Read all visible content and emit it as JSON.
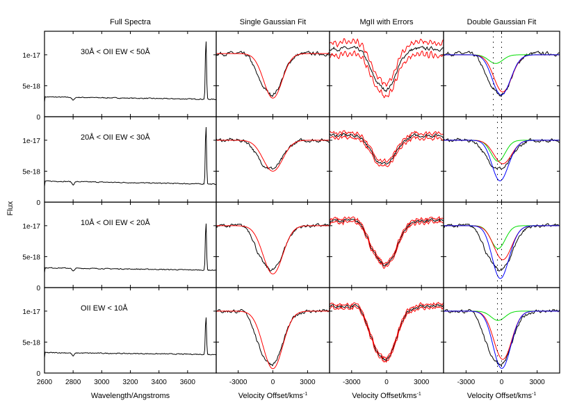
{
  "chart_data": {
    "type": "line",
    "ylabel": "Flux",
    "column_titles": [
      "Full Spectra",
      "Single Gaussian Fit",
      "MgII with Errors",
      "Double Gaussian Fit"
    ],
    "xlabels": [
      "Wavelength/Angstroms",
      "Velocity Offset/kms",
      "Velocity Offset/kms",
      "Velocity Offset/kms"
    ],
    "xlabel_superscript": "-1",
    "full_spectra_xlim": [
      2600,
      3800
    ],
    "full_spectra_xticks": [
      "2600",
      "2800",
      "3000",
      "3200",
      "3400",
      "3600"
    ],
    "velocity_xlim": [
      -4900,
      4900
    ],
    "velocity_xticks": [
      "-3000",
      "0",
      "3000"
    ],
    "ylim": [
      0,
      1.38e-17
    ],
    "yticks": [
      "0",
      "5e-18",
      "1e-17"
    ],
    "series_colors": {
      "data": "#000000",
      "fit": "#ff0000",
      "component_2": "#00dd00",
      "total_fit": "#0000ff",
      "errors": "#ff0000"
    },
    "rows": [
      {
        "label": "30Å < OII EW < 50Å",
        "continuum_start": 3.2e-18,
        "continuum_end": 2.8e-18,
        "oii_peak": 1.3e-17,
        "single_fit": {
          "continuum": 1.02e-17,
          "minimum": 3e-18,
          "center": 0,
          "sigma": 800
        },
        "error_band": 1e-18,
        "double_fit": {
          "continuum": 1e-17,
          "red_center": 100,
          "red_minimum": 4e-18,
          "green_center": -500,
          "green_minimum": 8.6e-18,
          "total_minimum": 3.6e-18,
          "dotted_lines": [
            -700,
            0
          ]
        }
      },
      {
        "label": "20Å < OII EW < 30Å",
        "continuum_start": 3.4e-18,
        "continuum_end": 2.9e-18,
        "oii_peak": 1.3e-17,
        "single_fit": {
          "continuum": 1e-17,
          "minimum": 5e-18,
          "center": 0,
          "sigma": 850
        },
        "error_band": 4e-19,
        "double_fit": {
          "continuum": 1e-17,
          "red_center": 100,
          "red_minimum": 6.2e-18,
          "green_center": -300,
          "green_minimum": 6.6e-18,
          "total_minimum": 3.8e-18,
          "dotted_lines": [
            -350,
            0
          ]
        }
      },
      {
        "label": "10Å < OII EW < 20Å",
        "continuum_start": 3.2e-18,
        "continuum_end": 2.8e-18,
        "oii_peak": 1.1e-17,
        "single_fit": {
          "continuum": 1e-17,
          "minimum": 2.2e-18,
          "center": 0,
          "sigma": 850
        },
        "error_band": 3e-19,
        "double_fit": {
          "continuum": 1e-17,
          "red_center": 100,
          "red_minimum": 4.5e-18,
          "green_center": -300,
          "green_minimum": 6.3e-18,
          "total_minimum": 1.8e-18,
          "dotted_lines": [
            -350,
            0
          ]
        }
      },
      {
        "label": "OII EW < 10Å",
        "continuum_start": 3.3e-18,
        "continuum_end": 3e-18,
        "oii_peak": 9.5e-18,
        "single_fit": {
          "continuum": 1e-17,
          "minimum": 7e-19,
          "center": 0,
          "sigma": 850
        },
        "error_band": 3e-19,
        "double_fit": {
          "continuum": 1e-17,
          "red_center": 100,
          "red_minimum": 2.2e-18,
          "green_center": -300,
          "green_minimum": 8.5e-18,
          "total_minimum": 8e-19,
          "dotted_lines": [
            -350,
            0
          ]
        }
      }
    ]
  }
}
